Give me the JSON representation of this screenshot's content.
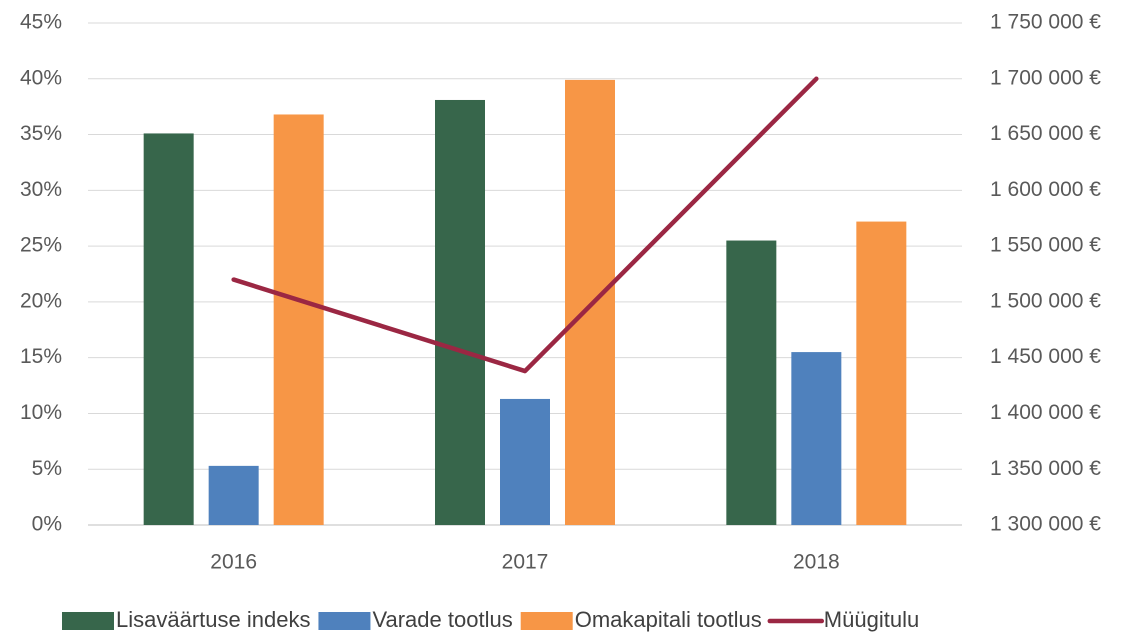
{
  "chart_data": {
    "type": "bar",
    "categories": [
      "2016",
      "2017",
      "2018"
    ],
    "series": [
      {
        "name": "Lisaväärtuse indeks",
        "color": "#37664b",
        "values": [
          35.1,
          38.1,
          25.5
        ]
      },
      {
        "name": "Varade tootlus",
        "color": "#4f81bd",
        "values": [
          5.3,
          11.3,
          15.5
        ]
      },
      {
        "name": "Omakapitali tootlus",
        "color": "#f79646",
        "values": [
          36.8,
          39.9,
          27.2
        ]
      },
      {
        "name": "Müügitulu",
        "type": "line",
        "axis": "y2",
        "color": "#9b2743",
        "values": [
          1520000,
          1438000,
          1700000
        ]
      }
    ],
    "ylim": [
      0,
      45
    ],
    "yticks": [
      {
        "value": 0,
        "label": "0%"
      },
      {
        "value": 5,
        "label": "5%"
      },
      {
        "value": 10,
        "label": "10%"
      },
      {
        "value": 15,
        "label": "15%"
      },
      {
        "value": 20,
        "label": "20%"
      },
      {
        "value": 25,
        "label": "25%"
      },
      {
        "value": 30,
        "label": "30%"
      },
      {
        "value": 35,
        "label": "35%"
      },
      {
        "value": 40,
        "label": "40%"
      },
      {
        "value": 45,
        "label": "45%"
      }
    ],
    "y2lim": [
      1300000,
      1750000
    ],
    "y2ticks": [
      {
        "value": 1300000,
        "label": "1 300 000 €"
      },
      {
        "value": 1350000,
        "label": "1 350 000 €"
      },
      {
        "value": 1400000,
        "label": "1 400 000 €"
      },
      {
        "value": 1450000,
        "label": "1 450 000 €"
      },
      {
        "value": 1500000,
        "label": "1 500 000 €"
      },
      {
        "value": 1550000,
        "label": "1 550 000 €"
      },
      {
        "value": 1600000,
        "label": "1 600 000 €"
      },
      {
        "value": 1650000,
        "label": "1 650 000 €"
      },
      {
        "value": 1700000,
        "label": "1 700 000 €"
      },
      {
        "value": 1750000,
        "label": "1 750 000 €"
      }
    ],
    "grid": true,
    "legend": "bottom"
  }
}
